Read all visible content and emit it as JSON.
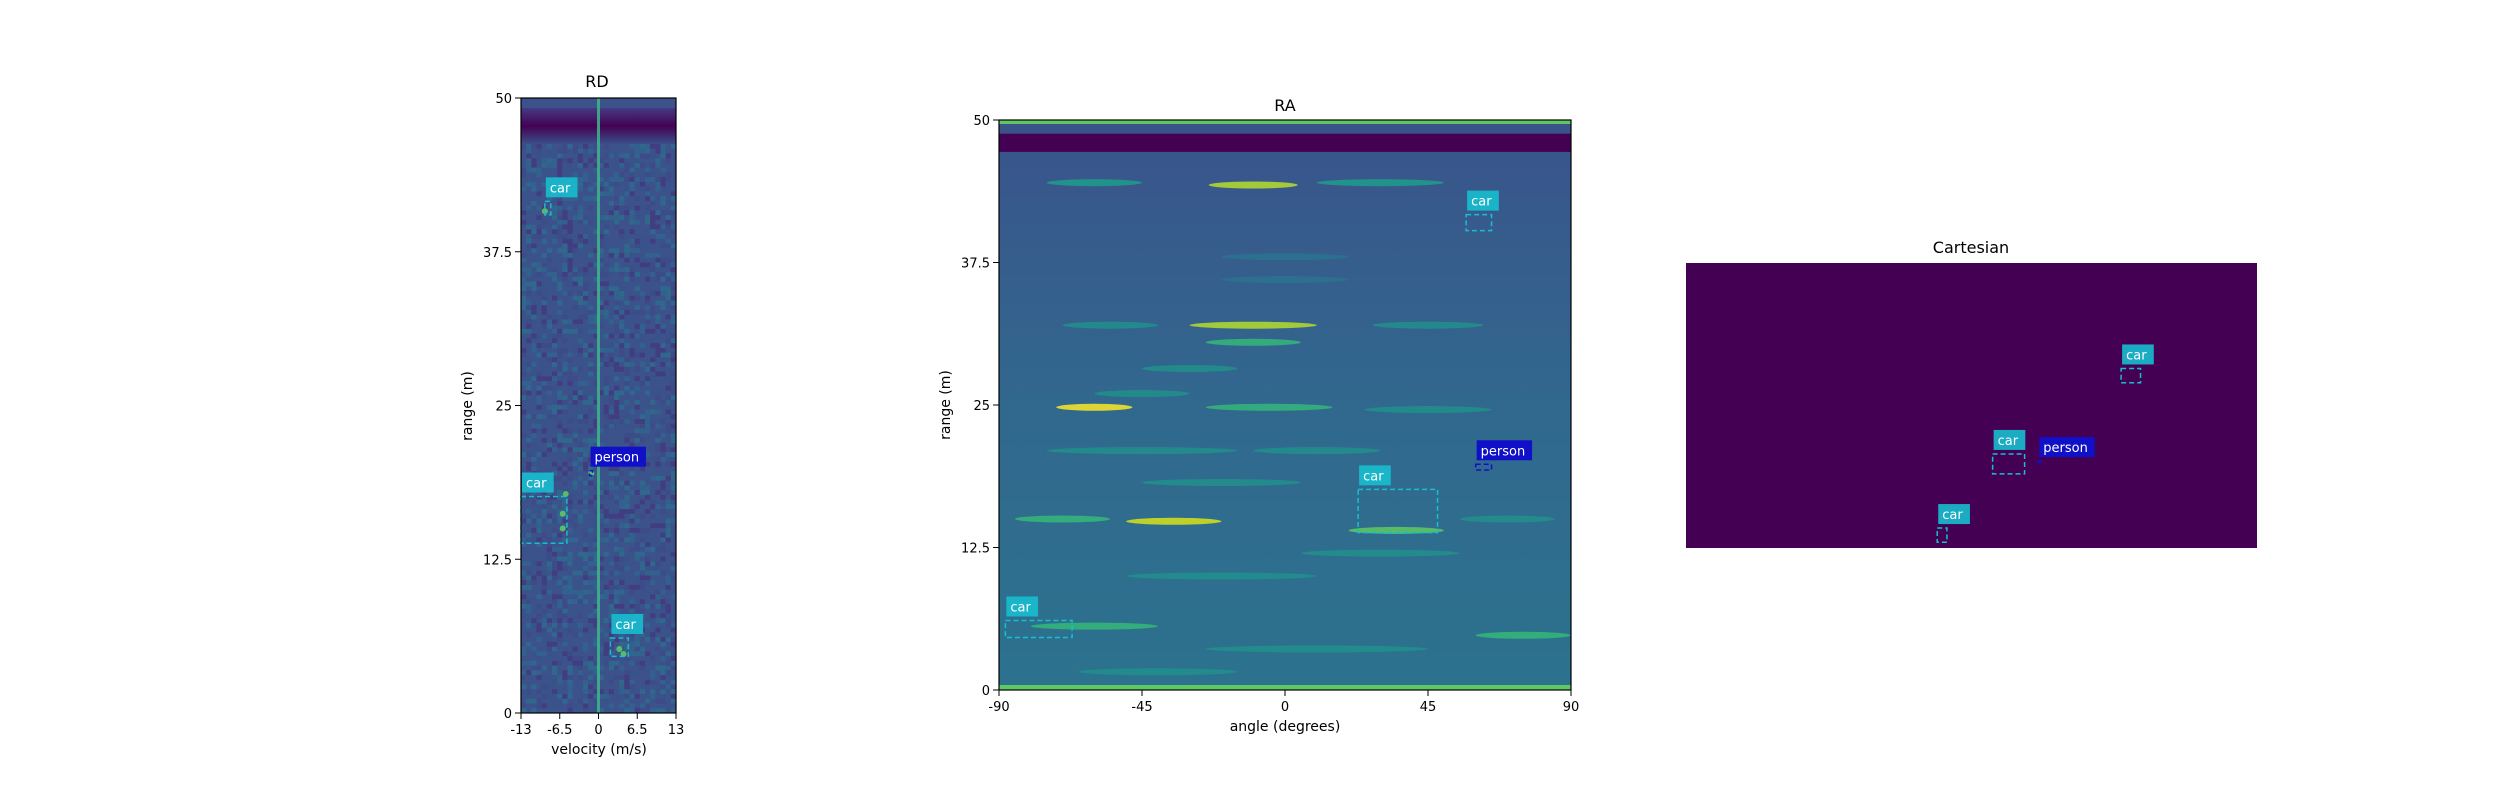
{
  "colors": {
    "background": "#ffffff",
    "viridis_dark": "#440154",
    "car": "#17becf",
    "person": "#1010c8",
    "axis": "#000000"
  },
  "chart_data": [
    {
      "id": "rd",
      "type": "heatmap",
      "title": "RD",
      "xlabel": "velocity (m/s)",
      "ylabel": "range (m)",
      "xlim": [
        -13,
        13
      ],
      "ylim": [
        0,
        50
      ],
      "xticks": [
        "-13",
        "-6.5",
        "0",
        "6.5",
        "13"
      ],
      "yticks": [
        "0",
        "12.5",
        "25",
        "37.5",
        "50"
      ],
      "colormap": "viridis",
      "annotations": [
        {
          "label": "car",
          "class": "car",
          "x0": -9.0,
          "x1": -8.0,
          "y0": 40.5,
          "y1": 41.6
        },
        {
          "label": "person",
          "class": "person",
          "x0": -1.5,
          "x1": -1.2,
          "y0": 19.3,
          "y1": 19.7
        },
        {
          "label": "car",
          "class": "car",
          "x0": -13.0,
          "x1": -5.3,
          "y0": 13.8,
          "y1": 17.6
        },
        {
          "label": "car",
          "class": "car",
          "x0": 2.0,
          "x1": 5.0,
          "y0": 4.6,
          "y1": 6.1
        }
      ]
    },
    {
      "id": "ra",
      "type": "heatmap",
      "title": "RA",
      "xlabel": "angle (degrees)",
      "ylabel": "range (m)",
      "xlim": [
        -90,
        90
      ],
      "ylim": [
        0,
        50
      ],
      "xticks": [
        "-90",
        "-45",
        "0",
        "45",
        "90"
      ],
      "yticks": [
        "0",
        "12.5",
        "25",
        "37.5",
        "50"
      ],
      "colormap": "viridis",
      "annotations": [
        {
          "label": "car",
          "class": "car",
          "x0": 57,
          "x1": 65,
          "y0": 40.3,
          "y1": 41.7
        },
        {
          "label": "person",
          "class": "person",
          "x0": 60,
          "x1": 65,
          "y0": 19.3,
          "y1": 19.8
        },
        {
          "label": "car",
          "class": "car",
          "x0": 23,
          "x1": 48,
          "y0": 13.8,
          "y1": 17.6
        },
        {
          "label": "car",
          "class": "car",
          "x0": -88,
          "x1": -67,
          "y0": 4.6,
          "y1": 6.1
        }
      ]
    },
    {
      "id": "cartesian",
      "type": "heatmap",
      "title": "Cartesian",
      "colormap": "viridis",
      "annotations": [
        {
          "label": "car",
          "class": "car",
          "x0": 0.762,
          "x1": 0.796,
          "y0": 0.58,
          "y1": 0.63
        },
        {
          "label": "car",
          "class": "car",
          "x0": 0.537,
          "x1": 0.593,
          "y0": 0.26,
          "y1": 0.33
        },
        {
          "label": "person",
          "class": "person",
          "x0": 0.617,
          "x1": 0.622,
          "y0": 0.3,
          "y1": 0.305
        },
        {
          "label": "car",
          "class": "car",
          "x0": 0.44,
          "x1": 0.457,
          "y0": 0.02,
          "y1": 0.07
        }
      ]
    }
  ]
}
